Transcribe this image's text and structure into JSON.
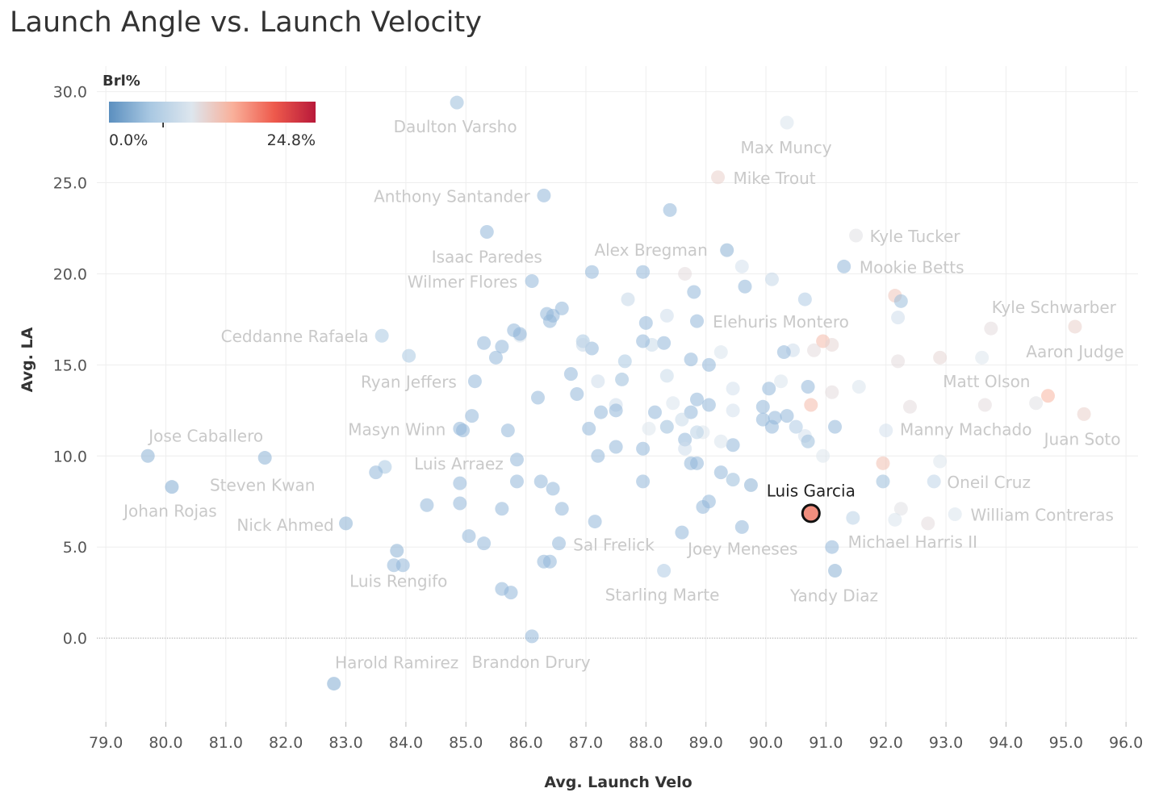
{
  "chart_data": {
    "type": "scatter",
    "title": "Launch Angle vs. Launch Velocity",
    "xlabel": "Avg. Launch Velo",
    "ylabel": "Avg. LA",
    "xlim": [
      78.85,
      96.2
    ],
    "ylim": [
      -4.6,
      31.4
    ],
    "xticks": [
      "79.0",
      "80.0",
      "81.0",
      "82.0",
      "83.0",
      "84.0",
      "85.0",
      "86.0",
      "87.0",
      "88.0",
      "89.0",
      "90.0",
      "91.0",
      "92.0",
      "93.0",
      "94.0",
      "95.0",
      "96.0"
    ],
    "yticks": [
      "0.0",
      "5.0",
      "10.0",
      "15.0",
      "20.0",
      "25.0",
      "30.0"
    ],
    "grid": true,
    "zero_line": true,
    "color_legend": {
      "title": "Brl%",
      "min_label": "0.0%",
      "max_label": "24.8%",
      "min": 0,
      "max": 24.8,
      "mid_marker": 6.5,
      "colors": [
        "#5b8fbf",
        "#a9c8e2",
        "#dde6ee",
        "#f9b09a",
        "#ee5a4c",
        "#b8193a"
      ],
      "placement": "top-left"
    },
    "highlight_color": "#f08e7e",
    "points": [
      {
        "x": 79.7,
        "y": 10.0,
        "brl": 3.0,
        "label": "Jose Caballero"
      },
      {
        "x": 80.1,
        "y": 8.3,
        "brl": 2.5,
        "label": "Johan Rojas"
      },
      {
        "x": 81.65,
        "y": 9.9,
        "brl": 3.0,
        "label": "Steven Kwan"
      },
      {
        "x": 83.0,
        "y": 6.3,
        "brl": 3.0,
        "label": "Nick Ahmed"
      },
      {
        "x": 82.8,
        "y": -2.5,
        "brl": 2.5,
        "label": "Harold Ramirez"
      },
      {
        "x": 83.85,
        "y": 4.8,
        "brl": 3.0,
        "label": "Luis Rengifo"
      },
      {
        "x": 83.6,
        "y": 16.6,
        "brl": 5.0,
        "label": "Ceddanne Rafaela"
      },
      {
        "x": 84.85,
        "y": 29.4,
        "brl": 4.0,
        "label": "Daulton Varsho"
      },
      {
        "x": 85.15,
        "y": 14.1,
        "brl": 3.5,
        "label": "Ryan Jeffers"
      },
      {
        "x": 84.9,
        "y": 11.5,
        "brl": 3.5,
        "label": "Masyn Winn"
      },
      {
        "x": 85.85,
        "y": 9.8,
        "brl": 3.5,
        "label": "Luis Arraez"
      },
      {
        "x": 85.35,
        "y": 22.3,
        "brl": 3.5,
        "label": "Isaac Paredes"
      },
      {
        "x": 86.1,
        "y": 19.6,
        "brl": 3.5,
        "label": "Wilmer Flores"
      },
      {
        "x": 86.3,
        "y": 24.3,
        "brl": 3.5,
        "label": "Anthony Santander"
      },
      {
        "x": 86.1,
        "y": 0.1,
        "brl": 3.5,
        "label": "Brandon Drury"
      },
      {
        "x": 86.55,
        "y": 5.2,
        "brl": 3.5,
        "label": "Sal Frelick"
      },
      {
        "x": 87.95,
        "y": 20.1,
        "brl": 3.5,
        "label": "Alex Bregman"
      },
      {
        "x": 88.3,
        "y": 3.7,
        "brl": 5.5,
        "label": "Starling Marte"
      },
      {
        "x": 89.6,
        "y": 6.1,
        "brl": 3.5,
        "label": "Joey Meneses"
      },
      {
        "x": 89.2,
        "y": 25.3,
        "brl": 12.0,
        "label": "Mike Trout"
      },
      {
        "x": 88.85,
        "y": 17.4,
        "brl": 3.5,
        "label": "Elehuris Montero"
      },
      {
        "x": 90.35,
        "y": 28.3,
        "brl": 9.5,
        "label": "Max Muncy"
      },
      {
        "x": 91.5,
        "y": 22.1,
        "brl": 10.5,
        "label": "Kyle Tucker"
      },
      {
        "x": 91.3,
        "y": 20.4,
        "brl": 3.5,
        "label": "Mookie Betts"
      },
      {
        "x": 91.1,
        "y": 5.0,
        "brl": 3.5,
        "label": "Michael Harris II"
      },
      {
        "x": 91.15,
        "y": 3.7,
        "brl": 3.0,
        "label": "Yandy Diaz"
      },
      {
        "x": 90.75,
        "y": 6.85,
        "brl": 14.0,
        "label": "Luis Garcia",
        "highlight": true
      },
      {
        "x": 92.0,
        "y": 11.4,
        "brl": 9.0,
        "label": "Manny Machado"
      },
      {
        "x": 92.8,
        "y": 8.6,
        "brl": 7.0,
        "label": "Oneil Cruz"
      },
      {
        "x": 93.15,
        "y": 6.8,
        "brl": 9.5,
        "label": "William Contreras"
      },
      {
        "x": 93.65,
        "y": 12.8,
        "brl": 11.0,
        "label": "Matt Olson"
      },
      {
        "x": 93.75,
        "y": 17.0,
        "brl": 11.0,
        "label": "Kyle Schwarber"
      },
      {
        "x": 95.15,
        "y": 17.1,
        "brl": 12.0,
        "label": "Aaron Judge"
      },
      {
        "x": 95.3,
        "y": 12.3,
        "brl": 12.0,
        "label": "Juan Soto"
      },
      {
        "x": 94.7,
        "y": 13.3,
        "brl": 14.5
      },
      {
        "x": 94.5,
        "y": 12.9,
        "brl": 10.5
      },
      {
        "x": 93.6,
        "y": 15.4,
        "brl": 10.0
      },
      {
        "x": 92.9,
        "y": 15.4,
        "brl": 11.5
      },
      {
        "x": 92.2,
        "y": 15.2,
        "brl": 11.0
      },
      {
        "x": 92.2,
        "y": 17.6,
        "brl": 8.5
      },
      {
        "x": 92.15,
        "y": 18.8,
        "brl": 13.0
      },
      {
        "x": 92.25,
        "y": 18.5,
        "brl": 4.0
      },
      {
        "x": 92.4,
        "y": 12.7,
        "brl": 11.0
      },
      {
        "x": 92.9,
        "y": 9.7,
        "brl": 10.0
      },
      {
        "x": 91.95,
        "y": 9.6,
        "brl": 13.5
      },
      {
        "x": 91.95,
        "y": 8.6,
        "brl": 4.0
      },
      {
        "x": 92.25,
        "y": 7.1,
        "brl": 10.5
      },
      {
        "x": 92.15,
        "y": 6.5,
        "brl": 9.5
      },
      {
        "x": 92.7,
        "y": 6.3,
        "brl": 11.0
      },
      {
        "x": 91.45,
        "y": 6.6,
        "brl": 6.5
      },
      {
        "x": 91.55,
        "y": 13.8,
        "brl": 9.5
      },
      {
        "x": 91.15,
        "y": 11.6,
        "brl": 3.5
      },
      {
        "x": 91.1,
        "y": 13.5,
        "brl": 11.0
      },
      {
        "x": 90.95,
        "y": 16.3,
        "brl": 14.0
      },
      {
        "x": 91.1,
        "y": 16.1,
        "brl": 11.5
      },
      {
        "x": 90.8,
        "y": 15.8,
        "brl": 11.0
      },
      {
        "x": 90.75,
        "y": 12.8,
        "brl": 14.0
      },
      {
        "x": 90.7,
        "y": 13.8,
        "brl": 3.5
      },
      {
        "x": 90.65,
        "y": 18.6,
        "brl": 5.5
      },
      {
        "x": 90.95,
        "y": 10.0,
        "brl": 10.0
      },
      {
        "x": 90.65,
        "y": 11.1,
        "brl": 9.0
      },
      {
        "x": 90.7,
        "y": 10.8,
        "brl": 4.0
      },
      {
        "x": 90.45,
        "y": 15.8,
        "brl": 8.5
      },
      {
        "x": 90.3,
        "y": 15.7,
        "brl": 3.5
      },
      {
        "x": 90.5,
        "y": 11.6,
        "brl": 5.5
      },
      {
        "x": 90.35,
        "y": 12.2,
        "brl": 3.5
      },
      {
        "x": 90.25,
        "y": 14.1,
        "brl": 9.5
      },
      {
        "x": 90.1,
        "y": 19.7,
        "brl": 7.5
      },
      {
        "x": 90.05,
        "y": 13.7,
        "brl": 3.5
      },
      {
        "x": 89.95,
        "y": 12.7,
        "brl": 3.5
      },
      {
        "x": 89.95,
        "y": 12.0,
        "brl": 3.5
      },
      {
        "x": 90.1,
        "y": 11.6,
        "brl": 3.5
      },
      {
        "x": 90.15,
        "y": 12.1,
        "brl": 3.5
      },
      {
        "x": 89.75,
        "y": 8.4,
        "brl": 3.0
      },
      {
        "x": 89.6,
        "y": 20.4,
        "brl": 9.0
      },
      {
        "x": 89.65,
        "y": 19.3,
        "brl": 3.5
      },
      {
        "x": 89.35,
        "y": 21.3,
        "brl": 3.0
      },
      {
        "x": 89.45,
        "y": 13.7,
        "brl": 9.0
      },
      {
        "x": 89.45,
        "y": 12.5,
        "brl": 9.0
      },
      {
        "x": 89.45,
        "y": 10.6,
        "brl": 3.5
      },
      {
        "x": 89.45,
        "y": 8.7,
        "brl": 4.0
      },
      {
        "x": 89.25,
        "y": 15.7,
        "brl": 9.5
      },
      {
        "x": 89.25,
        "y": 10.8,
        "brl": 9.5
      },
      {
        "x": 89.25,
        "y": 9.1,
        "brl": 3.5
      },
      {
        "x": 89.05,
        "y": 15.0,
        "brl": 3.5
      },
      {
        "x": 89.05,
        "y": 12.8,
        "brl": 3.5
      },
      {
        "x": 89.05,
        "y": 7.5,
        "brl": 3.5
      },
      {
        "x": 88.95,
        "y": 11.3,
        "brl": 10.0
      },
      {
        "x": 88.95,
        "y": 7.2,
        "brl": 3.5
      },
      {
        "x": 88.85,
        "y": 13.1,
        "brl": 3.5
      },
      {
        "x": 88.85,
        "y": 11.3,
        "brl": 6.5
      },
      {
        "x": 88.85,
        "y": 9.6,
        "brl": 3.5
      },
      {
        "x": 88.8,
        "y": 19.0,
        "brl": 3.5
      },
      {
        "x": 88.75,
        "y": 15.3,
        "brl": 3.5
      },
      {
        "x": 88.75,
        "y": 12.4,
        "brl": 3.5
      },
      {
        "x": 88.75,
        "y": 9.6,
        "brl": 3.5
      },
      {
        "x": 88.65,
        "y": 20.0,
        "brl": 11.0
      },
      {
        "x": 88.65,
        "y": 10.9,
        "brl": 3.5
      },
      {
        "x": 88.65,
        "y": 10.4,
        "brl": 8.5
      },
      {
        "x": 88.6,
        "y": 12.0,
        "brl": 8.0
      },
      {
        "x": 88.6,
        "y": 5.8,
        "brl": 3.5
      },
      {
        "x": 88.45,
        "y": 12.9,
        "brl": 9.5
      },
      {
        "x": 88.4,
        "y": 23.5,
        "brl": 3.5
      },
      {
        "x": 88.35,
        "y": 17.7,
        "brl": 8.5
      },
      {
        "x": 88.35,
        "y": 14.4,
        "brl": 8.0
      },
      {
        "x": 88.35,
        "y": 11.6,
        "brl": 4.0
      },
      {
        "x": 88.3,
        "y": 16.2,
        "brl": 3.5
      },
      {
        "x": 88.15,
        "y": 12.4,
        "brl": 3.5
      },
      {
        "x": 88.1,
        "y": 16.1,
        "brl": 8.0
      },
      {
        "x": 88.05,
        "y": 11.5,
        "brl": 10.0
      },
      {
        "x": 88.0,
        "y": 17.3,
        "brl": 3.5
      },
      {
        "x": 87.95,
        "y": 16.3,
        "brl": 3.5
      },
      {
        "x": 87.95,
        "y": 10.4,
        "brl": 3.5
      },
      {
        "x": 87.95,
        "y": 8.6,
        "brl": 3.5
      },
      {
        "x": 87.7,
        "y": 18.6,
        "brl": 7.5
      },
      {
        "x": 87.65,
        "y": 15.2,
        "brl": 5.0
      },
      {
        "x": 87.6,
        "y": 14.2,
        "brl": 4.0
      },
      {
        "x": 87.5,
        "y": 12.8,
        "brl": 8.5
      },
      {
        "x": 87.5,
        "y": 12.5,
        "brl": 3.5
      },
      {
        "x": 87.5,
        "y": 10.5,
        "brl": 3.5
      },
      {
        "x": 87.25,
        "y": 12.4,
        "brl": 3.5
      },
      {
        "x": 87.2,
        "y": 14.1,
        "brl": 8.5
      },
      {
        "x": 87.2,
        "y": 10.0,
        "brl": 3.5
      },
      {
        "x": 87.15,
        "y": 6.4,
        "brl": 3.5
      },
      {
        "x": 87.1,
        "y": 20.1,
        "brl": 3.5
      },
      {
        "x": 87.1,
        "y": 15.9,
        "brl": 3.5
      },
      {
        "x": 87.05,
        "y": 11.5,
        "brl": 3.5
      },
      {
        "x": 86.95,
        "y": 16.3,
        "brl": 5.0
      },
      {
        "x": 86.95,
        "y": 16.1,
        "brl": 7.5
      },
      {
        "x": 86.85,
        "y": 13.4,
        "brl": 3.5
      },
      {
        "x": 86.75,
        "y": 14.5,
        "brl": 3.5
      },
      {
        "x": 86.6,
        "y": 18.1,
        "brl": 3.5
      },
      {
        "x": 86.6,
        "y": 7.1,
        "brl": 3.5
      },
      {
        "x": 86.45,
        "y": 17.7,
        "brl": 3.5
      },
      {
        "x": 86.45,
        "y": 8.2,
        "brl": 3.5
      },
      {
        "x": 86.4,
        "y": 17.4,
        "brl": 3.5
      },
      {
        "x": 86.4,
        "y": 4.2,
        "brl": 3.5
      },
      {
        "x": 86.35,
        "y": 17.8,
        "brl": 3.5
      },
      {
        "x": 86.3,
        "y": 4.2,
        "brl": 3.5
      },
      {
        "x": 86.25,
        "y": 8.6,
        "brl": 3.5
      },
      {
        "x": 86.2,
        "y": 13.2,
        "brl": 3.5
      },
      {
        "x": 85.9,
        "y": 16.6,
        "brl": 9.5
      },
      {
        "x": 85.9,
        "y": 16.7,
        "brl": 3.5
      },
      {
        "x": 85.85,
        "y": 8.6,
        "brl": 3.5
      },
      {
        "x": 85.8,
        "y": 16.9,
        "brl": 3.5
      },
      {
        "x": 85.75,
        "y": 2.5,
        "brl": 3.5
      },
      {
        "x": 85.7,
        "y": 11.4,
        "brl": 3.5
      },
      {
        "x": 85.6,
        "y": 16.0,
        "brl": 3.5
      },
      {
        "x": 85.6,
        "y": 7.1,
        "brl": 3.5
      },
      {
        "x": 85.6,
        "y": 2.7,
        "brl": 3.5
      },
      {
        "x": 85.5,
        "y": 15.4,
        "brl": 3.5
      },
      {
        "x": 85.3,
        "y": 16.2,
        "brl": 3.5
      },
      {
        "x": 85.3,
        "y": 5.2,
        "brl": 3.5
      },
      {
        "x": 85.1,
        "y": 12.2,
        "brl": 3.5
      },
      {
        "x": 85.05,
        "y": 5.6,
        "brl": 3.5
      },
      {
        "x": 84.95,
        "y": 11.4,
        "brl": 3.5
      },
      {
        "x": 84.9,
        "y": 8.5,
        "brl": 3.5
      },
      {
        "x": 84.9,
        "y": 7.4,
        "brl": 3.5
      },
      {
        "x": 84.35,
        "y": 7.3,
        "brl": 3.5
      },
      {
        "x": 84.05,
        "y": 15.5,
        "brl": 5.0
      },
      {
        "x": 83.95,
        "y": 4.0,
        "brl": 3.5
      },
      {
        "x": 83.8,
        "y": 4.0,
        "brl": 3.5
      },
      {
        "x": 83.65,
        "y": 9.4,
        "brl": 5.0
      },
      {
        "x": 83.5,
        "y": 9.1,
        "brl": 3.5
      }
    ]
  }
}
